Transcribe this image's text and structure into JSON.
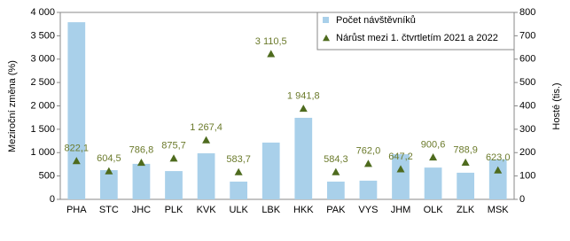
{
  "chart_data": {
    "type": "bar-line",
    "ylabel": "Meziroční změna (%)",
    "y2label": "Hosté (tis.)",
    "categories": [
      "PHA",
      "STC",
      "JHC",
      "PLK",
      "KVK",
      "ULK",
      "LBK",
      "HKK",
      "PAK",
      "VYS",
      "JHM",
      "OLK",
      "ZLK",
      "MSK"
    ],
    "series": [
      {
        "name": "Počet návštěvníků",
        "type": "bar",
        "axis": "y2",
        "color": "#a9d0ea",
        "values": [
          758,
          125,
          152,
          121,
          197,
          76,
          243,
          349,
          76,
          80,
          193,
          136,
          114,
          171
        ]
      },
      {
        "name": "Nárůst mezi 1. čtvrtletím 2021 a 2022",
        "type": "scatter",
        "axis": "y",
        "color": "#4e6b1e",
        "values": [
          822.1,
          604.5,
          786.8,
          875.7,
          1267.4,
          583.7,
          3110.5,
          1941.8,
          584.3,
          762.0,
          647.2,
          900.6,
          788.9,
          623.0
        ],
        "value_labels": [
          "822,1",
          "604,5",
          "786,8",
          "875,7",
          "1 267,4",
          "583,7",
          "3 110,5",
          "1 941,8",
          "584,3",
          "762,0",
          "647,2",
          "900,6",
          "788,9",
          "623,0"
        ]
      }
    ],
    "ylim": [
      0,
      4000
    ],
    "yticks": [
      0,
      500,
      {
        "value": 1000,
        "label": "1 000"
      },
      {
        "value": 1500,
        "label": "1 500"
      },
      {
        "value": 2000,
        "label": "2 000"
      },
      {
        "value": 2500,
        "label": "2 500"
      },
      {
        "value": 3000,
        "label": "3 000"
      },
      {
        "value": 3500,
        "label": "3 500"
      },
      {
        "value": 4000,
        "label": "4 000"
      }
    ],
    "y2lim": [
      0,
      800
    ],
    "y2ticks": [
      0,
      100,
      200,
      300,
      400,
      500,
      600,
      700,
      800
    ],
    "legend": "top-right"
  }
}
